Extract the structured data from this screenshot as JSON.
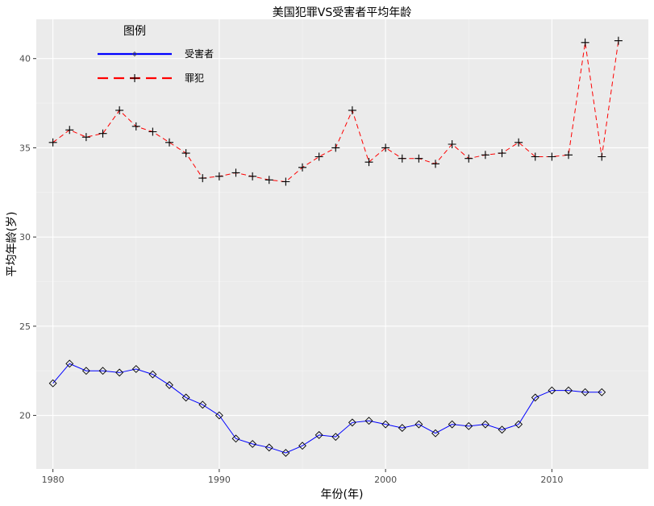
{
  "chart_data": {
    "type": "line",
    "title": "美国犯罪VS受害者平均年龄",
    "xlabel": "年份(年)",
    "ylabel": "平均年龄(岁)",
    "xlim": [
      1979.0,
      2015.8
    ],
    "ylim": [
      17.0,
      42.2
    ],
    "xticks": [
      1980,
      1990,
      2000,
      2010
    ],
    "yticks": [
      20,
      25,
      30,
      35,
      40
    ],
    "legend": {
      "title": "图例",
      "position": "top-left"
    },
    "series": [
      {
        "name": "受害者",
        "color": "#0000ff",
        "line_style": "solid",
        "marker": "diamond",
        "x": [
          1980,
          1981,
          1982,
          1983,
          1984,
          1985,
          1986,
          1987,
          1988,
          1989,
          1990,
          1991,
          1992,
          1993,
          1994,
          1995,
          1996,
          1997,
          1998,
          1999,
          2000,
          2001,
          2002,
          2003,
          2004,
          2005,
          2006,
          2007,
          2008,
          2009,
          2010,
          2011,
          2012,
          2013
        ],
        "y": [
          21.8,
          22.9,
          22.5,
          22.5,
          22.4,
          22.6,
          22.3,
          21.7,
          21.0,
          20.6,
          20.0,
          18.7,
          18.4,
          18.2,
          17.9,
          18.3,
          18.9,
          18.8,
          19.6,
          19.7,
          19.5,
          19.3,
          19.5,
          19.0,
          19.5,
          19.4,
          19.5,
          19.2,
          19.5,
          21.0,
          21.4,
          21.4,
          21.3,
          21.3
        ]
      },
      {
        "name": "罪犯",
        "color": "#ff0000",
        "line_style": "dashed",
        "marker": "cross",
        "x": [
          1980,
          1981,
          1982,
          1983,
          1984,
          1985,
          1986,
          1987,
          1988,
          1989,
          1990,
          1991,
          1992,
          1993,
          1994,
          1995,
          1996,
          1997,
          1998,
          1999,
          2000,
          2001,
          2002,
          2003,
          2004,
          2005,
          2006,
          2007,
          2008,
          2009,
          2010,
          2011,
          2012,
          2013,
          2014
        ],
        "y": [
          35.3,
          36.0,
          35.6,
          35.8,
          37.1,
          36.2,
          35.9,
          35.3,
          34.7,
          33.3,
          33.4,
          33.6,
          33.4,
          33.2,
          33.1,
          33.9,
          34.5,
          35.0,
          37.1,
          34.2,
          35.0,
          34.4,
          34.4,
          34.1,
          35.2,
          34.4,
          34.6,
          34.7,
          35.3,
          34.5,
          34.5,
          34.6,
          40.9,
          34.5,
          41.0
        ]
      }
    ]
  }
}
